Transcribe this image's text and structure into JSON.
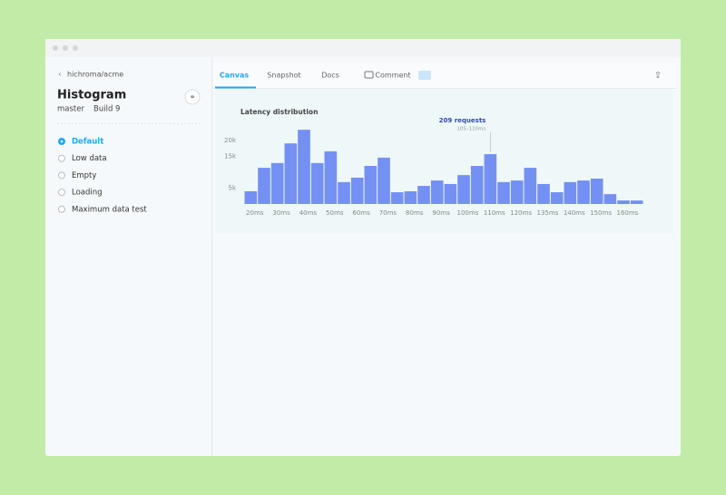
{
  "sidebar": {
    "breadcrumb": "hichroma/acme",
    "title": "Histogram",
    "branch": "master",
    "build": "Build 9",
    "stories": [
      "Default",
      "Low data",
      "Empty",
      "Loading",
      "Maximum data test"
    ]
  },
  "tabs": [
    "Canvas",
    "Snapshot",
    "Docs",
    "Comment"
  ],
  "chart_data": {
    "type": "bar",
    "title": "Latency distribution",
    "categories": [
      "20ms",
      null,
      "30ms",
      null,
      "40ms",
      null,
      "50ms",
      null,
      "60ms",
      null,
      "70ms",
      null,
      "80ms",
      null,
      "90ms",
      null,
      "100ms",
      null,
      "110ms",
      null,
      "120ms",
      null,
      "135ms",
      null,
      "140ms",
      null,
      "150ms",
      null,
      "160ms",
      null
    ],
    "series": [
      {
        "name": "requests",
        "color": "#7590f3",
        "values": [
          4000,
          11400,
          12900,
          19100,
          23400,
          12900,
          16600,
          6900,
          8300,
          12000,
          14600,
          3700,
          4000,
          5700,
          7400,
          6300,
          9100,
          12000,
          15700,
          6900,
          7400,
          11400,
          6300,
          3700,
          6900,
          7400,
          8000,
          3100,
          1100,
          1100
        ]
      }
    ],
    "ylim": [
      0,
      24000
    ],
    "yticks": [
      {
        "value": 20000,
        "label": "20k"
      },
      {
        "value": 15000,
        "label": "15k"
      },
      {
        "value": 5000,
        "label": "5k"
      }
    ],
    "annotation": {
      "title": "209 requests",
      "subtitle": "105–110ms"
    }
  }
}
